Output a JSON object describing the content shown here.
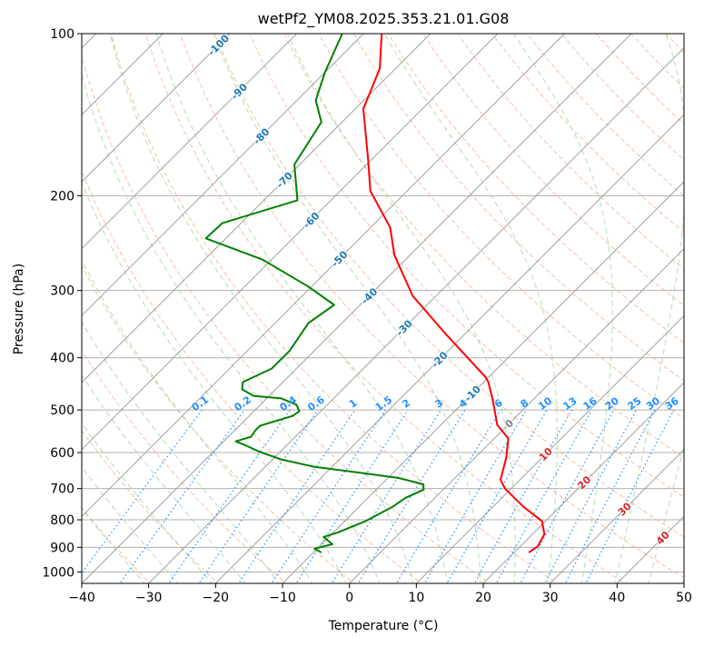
{
  "chart_data": {
    "type": "line",
    "subtype": "skew-T log-P diagram",
    "title": "wetPf2_YM08.2025.353.21.01.G08",
    "xlabel": "Temperature (°C)",
    "ylabel": "Pressure (hPa)",
    "xlim": [
      -40,
      50
    ],
    "ylim": [
      1050,
      100
    ],
    "yscale": "log",
    "grid": true,
    "xticks": [
      "−40",
      "−30",
      "−20",
      "−10",
      "0",
      "10",
      "20",
      "30",
      "40",
      "50"
    ],
    "xtick_values": [
      -40,
      -30,
      -20,
      -10,
      0,
      10,
      20,
      30,
      40,
      50
    ],
    "yticks": [
      "100",
      "200",
      "300",
      "400",
      "500",
      "600",
      "700",
      "800",
      "900",
      "1000"
    ],
    "ytick_values": [
      100,
      200,
      300,
      400,
      500,
      600,
      700,
      800,
      900,
      1000
    ],
    "colors": {
      "temperature": "#ff0000",
      "dewpoint": "#008000",
      "isotherm": "#a0a0a0",
      "dry_adiabat": "#f4a582",
      "moist_adiabat": "#9fd49f",
      "mixing_ratio": "#1e90ff",
      "isotherm_label_cold": "#1f77b4",
      "isotherm_label_zero": "#808080",
      "isotherm_label_warm": "#d62728"
    },
    "series": [
      {
        "name": "Temperature",
        "units": "pressure hPa, temperature °C",
        "points": [
          [
            100,
            -77.3
          ],
          [
            116,
            -72.4
          ],
          [
            138,
            -68.8
          ],
          [
            171,
            -60.6
          ],
          [
            196,
            -55.5
          ],
          [
            229,
            -47.1
          ],
          [
            258,
            -42.3
          ],
          [
            307,
            -33.5
          ],
          [
            359,
            -23.3
          ],
          [
            435,
            -10.4
          ],
          [
            444,
            -9.3
          ],
          [
            480,
            -5.9
          ],
          [
            533,
            -1.6
          ],
          [
            565,
            2.1
          ],
          [
            614,
            4.7
          ],
          [
            674,
            7.1
          ],
          [
            700,
            9.1
          ],
          [
            757,
            14.6
          ],
          [
            805,
            19.5
          ],
          [
            851,
            21.8
          ],
          [
            895,
            22.6
          ],
          [
            920,
            22.2
          ]
        ]
      },
      {
        "name": "Dewpoint",
        "units": "pressure hPa, temperature °C",
        "points": [
          [
            100,
            -83.2
          ],
          [
            118,
            -80.0
          ],
          [
            133,
            -77.2
          ],
          [
            146,
            -73.1
          ],
          [
            175,
            -70.8
          ],
          [
            204,
            -65.0
          ],
          [
            225,
            -72.8
          ],
          [
            240,
            -73.0
          ],
          [
            263,
            -61.3
          ],
          [
            295,
            -50.5
          ],
          [
            319,
            -43.9
          ],
          [
            345,
            -45.0
          ],
          [
            388,
            -43.7
          ],
          [
            419,
            -43.7
          ],
          [
            444,
            -46.0
          ],
          [
            458,
            -45.0
          ],
          [
            471,
            -42.3
          ],
          [
            476,
            -37.8
          ],
          [
            489,
            -34.6
          ],
          [
            503,
            -33.2
          ],
          [
            513,
            -33.5
          ],
          [
            535,
            -36.9
          ],
          [
            546,
            -36.9
          ],
          [
            561,
            -36.6
          ],
          [
            572,
            -38.2
          ],
          [
            583,
            -35.9
          ],
          [
            599,
            -32.9
          ],
          [
            618,
            -28.7
          ],
          [
            638,
            -22.6
          ],
          [
            655,
            -14.5
          ],
          [
            669,
            -8.4
          ],
          [
            687,
            -3.8
          ],
          [
            703,
            -2.9
          ],
          [
            728,
            -4.4
          ],
          [
            757,
            -5.0
          ],
          [
            805,
            -6.9
          ],
          [
            844,
            -9.3
          ],
          [
            861,
            -10.8
          ],
          [
            888,
            -8.4
          ],
          [
            905,
            -10.4
          ],
          [
            920,
            -8.8
          ]
        ]
      }
    ],
    "isotherm_labels": [
      {
        "text": "-100",
        "t": -100,
        "p": 105
      },
      {
        "text": "-90",
        "t": -90,
        "p": 128
      },
      {
        "text": "-80",
        "t": -80,
        "p": 155
      },
      {
        "text": "-70",
        "t": -70,
        "p": 187
      },
      {
        "text": "-60",
        "t": -60,
        "p": 222
      },
      {
        "text": "-50",
        "t": -50,
        "p": 262
      },
      {
        "text": "-40",
        "t": -40,
        "p": 307
      },
      {
        "text": "-30",
        "t": -30,
        "p": 352
      },
      {
        "text": "-20",
        "t": -20,
        "p": 403
      },
      {
        "text": "-10",
        "t": -10,
        "p": 466
      },
      {
        "text": "0",
        "t": 0,
        "p": 530
      },
      {
        "text": "10",
        "t": 10,
        "p": 604
      },
      {
        "text": "20",
        "t": 20,
        "p": 682
      },
      {
        "text": "30",
        "t": 30,
        "p": 764
      },
      {
        "text": "40",
        "t": 40,
        "p": 864
      }
    ],
    "mixing_ratio_labels": [
      "0.1",
      "0.2",
      "0.4",
      "0.6",
      "1",
      "1.5",
      "2",
      "3",
      "4",
      "6",
      "8",
      "10",
      "13",
      "16",
      "20",
      "25",
      "30",
      "36"
    ],
    "mixing_ratio_values": [
      0.1,
      0.2,
      0.4,
      0.6,
      1,
      1.5,
      2,
      3,
      4,
      6,
      8,
      10,
      13,
      16,
      20,
      25,
      30,
      36
    ]
  }
}
